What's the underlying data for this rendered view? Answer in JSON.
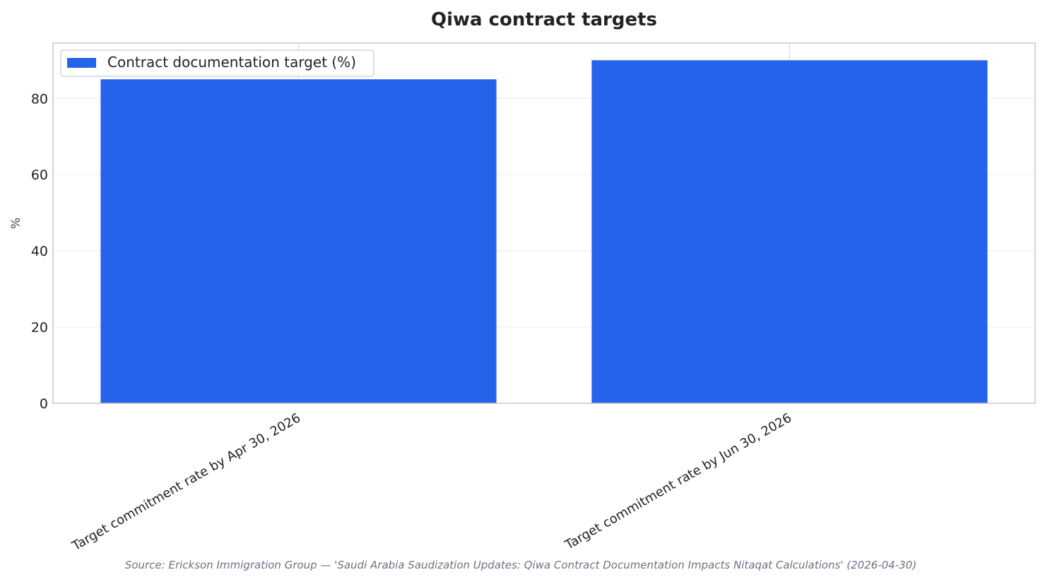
{
  "chart_data": {
    "type": "bar",
    "title": "Qiwa contract targets",
    "categories": [
      "Target commitment rate by Apr 30, 2026",
      "Target commitment rate by Jun 30, 2026"
    ],
    "series": [
      {
        "name": "Contract documentation target (%)",
        "values": [
          85,
          90
        ],
        "color": "#2563eb"
      }
    ],
    "xlabel": "",
    "ylabel": "%",
    "ylim": [
      0,
      94.5
    ],
    "yticks": [
      0,
      20,
      40,
      60,
      80
    ],
    "grid": true,
    "legend": "top-left",
    "source": "Source: Erickson Immigration Group — 'Saudi Arabia Saudization Updates: Qiwa Contract Documentation Impacts Nitaqat Calculations' (2026-04-30)"
  }
}
